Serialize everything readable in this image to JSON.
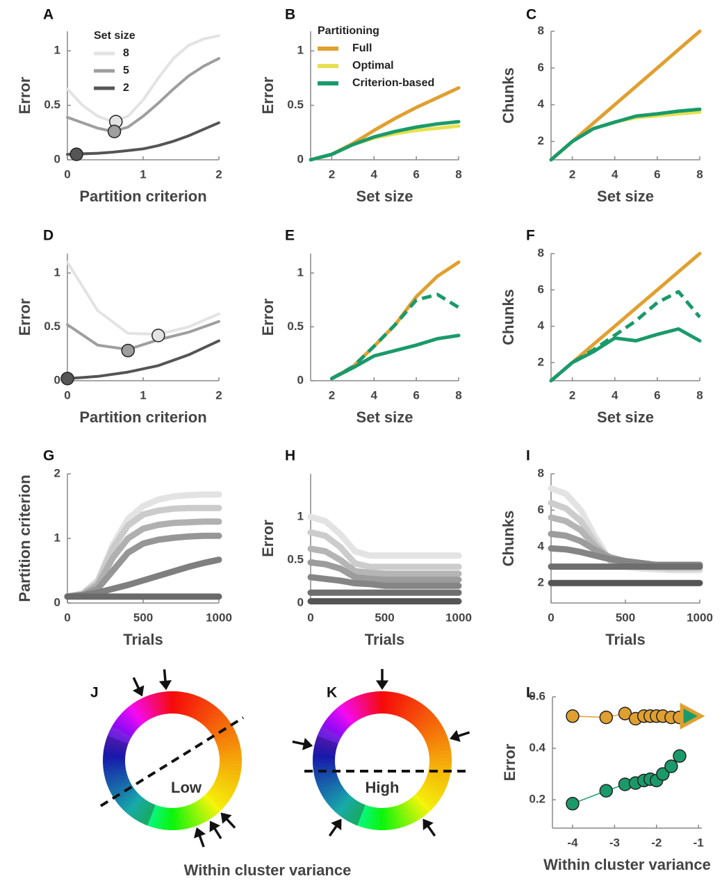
{
  "chart_data": [
    {
      "type": "line",
      "panel": "A",
      "xlabel": "Partition criterion",
      "ylabel": "Error",
      "xlim": [
        0,
        2
      ],
      "ylim": [
        0,
        1.18
      ],
      "xticks": [
        0,
        1,
        2
      ],
      "yticks": [
        0,
        0.5,
        1
      ],
      "legend": "upper left",
      "legend_title": "Set size",
      "x": [
        0,
        0.2,
        0.4,
        0.6,
        0.8,
        1.0,
        1.2,
        1.4,
        1.6,
        1.8,
        2.0
      ],
      "series": [
        {
          "name": "8",
          "color": "#e3e3e3",
          "values": [
            0.65,
            0.5,
            0.4,
            0.35,
            0.4,
            0.55,
            0.75,
            0.93,
            1.05,
            1.11,
            1.14
          ],
          "marker": {
            "x": 0.64,
            "y": 0.35
          }
        },
        {
          "name": "5",
          "color": "#9e9e9e",
          "values": [
            0.39,
            0.34,
            0.29,
            0.26,
            0.3,
            0.4,
            0.52,
            0.65,
            0.77,
            0.86,
            0.93
          ],
          "marker": {
            "x": 0.62,
            "y": 0.26
          }
        },
        {
          "name": "2",
          "color": "#555555",
          "values": [
            0.05,
            0.055,
            0.06,
            0.07,
            0.085,
            0.1,
            0.13,
            0.17,
            0.22,
            0.28,
            0.34
          ],
          "marker": {
            "x": 0.12,
            "y": 0.05
          }
        }
      ]
    },
    {
      "type": "line",
      "panel": "B",
      "xlabel": "Set size",
      "ylabel": "Error",
      "xlim": [
        1,
        8
      ],
      "ylim": [
        0,
        1.18
      ],
      "xticks": [
        2,
        4,
        6,
        8
      ],
      "yticks": [
        0,
        0.5,
        1
      ],
      "legend": "upper left",
      "legend_title": "Partitioning",
      "x": [
        1,
        2,
        3,
        4,
        5,
        6,
        7,
        8
      ],
      "series": [
        {
          "name": "Full",
          "color": "#e0a030",
          "values": [
            0,
            0.05,
            0.15,
            0.27,
            0.38,
            0.48,
            0.57,
            0.66
          ]
        },
        {
          "name": "Optimal",
          "color": "#e8e050",
          "values": [
            0,
            0.05,
            0.14,
            0.2,
            0.24,
            0.27,
            0.29,
            0.31
          ]
        },
        {
          "name": "Criterion-based",
          "color": "#1a9a6a",
          "values": [
            0,
            0.05,
            0.14,
            0.21,
            0.26,
            0.3,
            0.33,
            0.35
          ]
        }
      ]
    },
    {
      "type": "line",
      "panel": "C",
      "xlabel": "Set size",
      "ylabel": "Chunks",
      "xlim": [
        1,
        8
      ],
      "ylim": [
        1,
        8
      ],
      "xticks": [
        2,
        4,
        6,
        8
      ],
      "yticks": [
        2,
        4,
        6,
        8
      ],
      "x": [
        1,
        2,
        3,
        4,
        5,
        6,
        7,
        8
      ],
      "series": [
        {
          "color": "#e0a030",
          "values": [
            1,
            2,
            3,
            4,
            5,
            6,
            7,
            8
          ]
        },
        {
          "color": "#e8e050",
          "values": [
            1,
            2,
            2.7,
            3.05,
            3.3,
            3.4,
            3.5,
            3.6
          ]
        },
        {
          "color": "#1a9a6a",
          "values": [
            1,
            2,
            2.7,
            3.05,
            3.38,
            3.5,
            3.65,
            3.75
          ]
        }
      ]
    },
    {
      "type": "line",
      "panel": "D",
      "xlabel": "Partition criterion",
      "ylabel": "Error",
      "xlim": [
        0,
        2
      ],
      "ylim": [
        0,
        1.18
      ],
      "xticks": [
        0,
        1,
        2
      ],
      "yticks": [
        0,
        0.5,
        1
      ],
      "x": [
        0,
        0.4,
        0.8,
        1.2,
        1.6,
        2.0
      ],
      "series": [
        {
          "color": "#e3e3e3",
          "values": [
            1.1,
            0.65,
            0.44,
            0.43,
            0.5,
            0.62
          ],
          "marker": {
            "x": 1.2,
            "y": 0.42
          }
        },
        {
          "color": "#9e9e9e",
          "values": [
            0.52,
            0.33,
            0.29,
            0.38,
            0.45,
            0.55
          ],
          "marker": {
            "x": 0.8,
            "y": 0.28
          }
        },
        {
          "color": "#555555",
          "values": [
            0.02,
            0.04,
            0.08,
            0.14,
            0.24,
            0.37
          ],
          "marker": {
            "x": 0,
            "y": 0.02
          }
        }
      ]
    },
    {
      "type": "line",
      "panel": "E",
      "xlabel": "Set size",
      "ylabel": "Error",
      "xlim": [
        1,
        8
      ],
      "ylim": [
        0,
        1.18
      ],
      "xticks": [
        2,
        4,
        6,
        8
      ],
      "yticks": [
        0,
        0.5,
        1
      ],
      "x": [
        2,
        3,
        4,
        5,
        6,
        7,
        8
      ],
      "series": [
        {
          "color": "#e0a030",
          "values": [
            0.02,
            0.13,
            0.32,
            0.52,
            0.78,
            0.97,
            1.1
          ]
        },
        {
          "color": "#1a9a6a",
          "dash": true,
          "values": [
            0.02,
            0.13,
            0.32,
            0.52,
            0.75,
            0.8,
            0.68
          ]
        },
        {
          "color": "#1a9a6a",
          "values": [
            0.02,
            0.12,
            0.23,
            0.28,
            0.33,
            0.39,
            0.42
          ]
        }
      ]
    },
    {
      "type": "line",
      "panel": "F",
      "xlabel": "Set size",
      "ylabel": "Chunks",
      "xlim": [
        1,
        8
      ],
      "ylim": [
        1,
        8
      ],
      "xticks": [
        2,
        4,
        6,
        8
      ],
      "yticks": [
        2,
        4,
        6,
        8
      ],
      "x": [
        1,
        2,
        3,
        4,
        5,
        6,
        7,
        8
      ],
      "series": [
        {
          "color": "#e0a030",
          "values": [
            1,
            2,
            3,
            4,
            5,
            6,
            7,
            8
          ]
        },
        {
          "color": "#1a9a6a",
          "dash": true,
          "values": [
            1,
            2,
            2.7,
            3.5,
            4.3,
            5.3,
            5.9,
            4.5
          ]
        },
        {
          "color": "#1a9a6a",
          "values": [
            1,
            2,
            2.6,
            3.35,
            3.2,
            3.55,
            3.85,
            3.2
          ]
        }
      ]
    },
    {
      "type": "line",
      "panel": "G",
      "xlabel": "Trials",
      "ylabel": "Partition criterion",
      "thick": true,
      "xlim": [
        0,
        1000
      ],
      "ylim": [
        0,
        2
      ],
      "xticks": [
        0,
        500,
        1000
      ],
      "yticks": [
        0,
        1,
        2
      ],
      "x": [
        0,
        100,
        200,
        300,
        400,
        500,
        600,
        700,
        800,
        900,
        1000
      ],
      "series": [
        {
          "color": "#e3e3e3",
          "values": [
            0.1,
            0.15,
            0.35,
            0.9,
            1.3,
            1.5,
            1.6,
            1.65,
            1.67,
            1.68,
            1.68
          ]
        },
        {
          "color": "#cbcbcb",
          "values": [
            0.1,
            0.14,
            0.32,
            0.85,
            1.2,
            1.37,
            1.43,
            1.46,
            1.47,
            1.47,
            1.47
          ]
        },
        {
          "color": "#b0b0b0",
          "values": [
            0.1,
            0.13,
            0.28,
            0.7,
            1.0,
            1.15,
            1.21,
            1.24,
            1.25,
            1.26,
            1.26
          ]
        },
        {
          "color": "#969696",
          "values": [
            0.1,
            0.12,
            0.22,
            0.5,
            0.78,
            0.92,
            0.98,
            1.01,
            1.03,
            1.04,
            1.04
          ]
        },
        {
          "color": "#7f7f7f",
          "values": [
            0.1,
            0.12,
            0.16,
            0.22,
            0.28,
            0.35,
            0.42,
            0.49,
            0.56,
            0.62,
            0.67
          ]
        },
        {
          "color": "#6a6a6a",
          "values": [
            0.1,
            0.1,
            0.1,
            0.1,
            0.1,
            0.1,
            0.1,
            0.1,
            0.1,
            0.1,
            0.1
          ]
        }
      ]
    },
    {
      "type": "line",
      "panel": "H",
      "xlabel": "Trials",
      "ylabel": "Error",
      "thick": true,
      "xlim": [
        0,
        1000
      ],
      "ylim": [
        0,
        1.5
      ],
      "xticks": [
        0,
        500,
        1000
      ],
      "yticks": [
        0,
        0.5,
        1
      ],
      "x": [
        0,
        100,
        200,
        300,
        400,
        500,
        600,
        700,
        800,
        900,
        1000
      ],
      "series": [
        {
          "color": "#e3e3e3",
          "values": [
            1.0,
            0.95,
            0.8,
            0.6,
            0.55,
            0.55,
            0.55,
            0.55,
            0.55,
            0.55,
            0.55
          ]
        },
        {
          "color": "#cccccc",
          "values": [
            0.82,
            0.78,
            0.65,
            0.46,
            0.42,
            0.42,
            0.42,
            0.42,
            0.42,
            0.42,
            0.42
          ]
        },
        {
          "color": "#b5b5b5",
          "values": [
            0.63,
            0.6,
            0.5,
            0.37,
            0.35,
            0.34,
            0.34,
            0.34,
            0.34,
            0.34,
            0.34
          ]
        },
        {
          "color": "#9c9c9c",
          "values": [
            0.47,
            0.45,
            0.4,
            0.3,
            0.28,
            0.27,
            0.27,
            0.27,
            0.27,
            0.27,
            0.27
          ]
        },
        {
          "color": "#858585",
          "values": [
            0.3,
            0.28,
            0.26,
            0.23,
            0.22,
            0.2,
            0.2,
            0.2,
            0.2,
            0.2,
            0.2
          ]
        },
        {
          "color": "#6e6e6e",
          "values": [
            0.12,
            0.12,
            0.12,
            0.12,
            0.12,
            0.12,
            0.12,
            0.12,
            0.12,
            0.12,
            0.12
          ]
        },
        {
          "color": "#555555",
          "values": [
            0.02,
            0.02,
            0.02,
            0.02,
            0.02,
            0.02,
            0.02,
            0.02,
            0.02,
            0.02,
            0.02
          ]
        }
      ]
    },
    {
      "type": "line",
      "panel": "I",
      "xlabel": "Trials",
      "ylabel": "Chunks",
      "thick": true,
      "xlim": [
        0,
        1000
      ],
      "ylim": [
        0.9,
        8
      ],
      "xticks": [
        0,
        500,
        1000
      ],
      "yticks": [
        2,
        4,
        6,
        8
      ],
      "x": [
        0,
        100,
        200,
        300,
        400,
        500,
        600,
        700,
        800,
        900,
        1000
      ],
      "series": [
        {
          "color": "#e3e3e3",
          "values": [
            7.2,
            6.9,
            6.0,
            4.5,
            3.2,
            2.9,
            2.8,
            2.75,
            2.7,
            2.7,
            2.7
          ]
        },
        {
          "color": "#cccccc",
          "values": [
            6.4,
            6.1,
            5.4,
            4.2,
            3.2,
            3.0,
            2.9,
            2.85,
            2.8,
            2.8,
            2.8
          ]
        },
        {
          "color": "#b5b5b5",
          "values": [
            5.6,
            5.4,
            4.9,
            4.0,
            3.3,
            3.1,
            3.0,
            2.95,
            2.9,
            2.9,
            2.9
          ]
        },
        {
          "color": "#9c9c9c",
          "values": [
            4.7,
            4.6,
            4.3,
            3.8,
            3.4,
            3.2,
            3.1,
            3.0,
            3.0,
            3.0,
            3.0
          ]
        },
        {
          "color": "#858585",
          "values": [
            3.9,
            3.85,
            3.7,
            3.5,
            3.3,
            3.2,
            3.1,
            3.0,
            3.0,
            3.0,
            3.0
          ]
        },
        {
          "color": "#6e6e6e",
          "values": [
            2.9,
            2.9,
            2.9,
            2.9,
            2.9,
            2.9,
            2.9,
            2.9,
            2.9,
            2.9,
            2.9
          ]
        },
        {
          "color": "#555555",
          "values": [
            2.0,
            2.0,
            2.0,
            2.0,
            2.0,
            2.0,
            2.0,
            2.0,
            2.0,
            2.0,
            2.0
          ]
        }
      ]
    },
    {
      "type": "wheel",
      "panel": "J",
      "label": "Low"
    },
    {
      "type": "wheel",
      "panel": "K",
      "label": "High"
    },
    {
      "type": "scatter",
      "panel": "L",
      "xlabel": "Within cluster variance",
      "ylabel": "Error",
      "xlim": [
        -4.48,
        -0.92
      ],
      "ylim": [
        0.09,
        0.6
      ],
      "xticks": [
        -4,
        -3,
        -2,
        -1
      ],
      "yticks": [
        0.2,
        0.4,
        0.6
      ],
      "series": [
        {
          "color": "#e0a030",
          "x": [
            -4,
            -3.2,
            -2.75,
            -2.5,
            -2.3,
            -2.15,
            -2.0,
            -1.85,
            -1.65,
            -1.45
          ],
          "values": [
            0.525,
            0.52,
            0.535,
            0.515,
            0.525,
            0.525,
            0.525,
            0.525,
            0.52,
            0.52
          ]
        },
        {
          "color": "#1a9a6a",
          "x": [
            -4,
            -3.2,
            -2.75,
            -2.5,
            -2.3,
            -2.15,
            -2.0,
            -1.85,
            -1.65,
            -1.45
          ],
          "values": [
            0.185,
            0.235,
            0.26,
            0.265,
            0.275,
            0.28,
            0.275,
            0.3,
            0.33,
            0.37
          ]
        },
        {
          "color": "#1a9a6a",
          "edge": "#e0a030",
          "marker": "triangle",
          "x": [
            -1.2
          ],
          "values": [
            0.525
          ]
        }
      ]
    }
  ],
  "footer": {
    "caption": "Within cluster variance"
  }
}
